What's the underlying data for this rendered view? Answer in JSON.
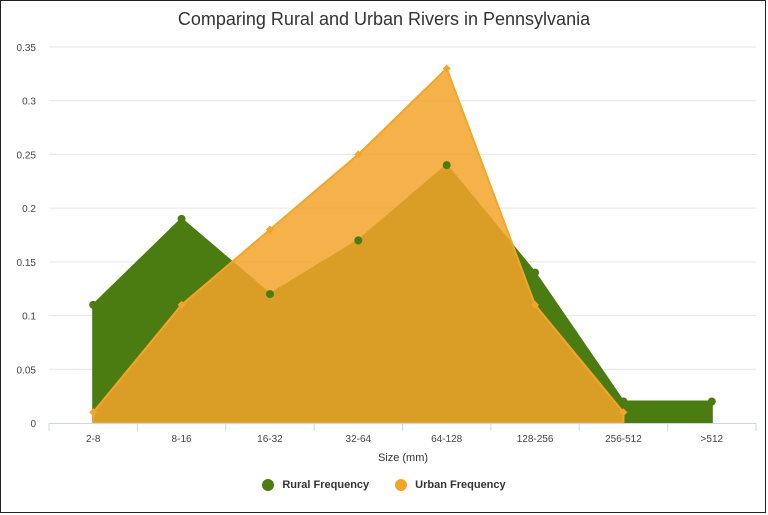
{
  "chart_data": {
    "type": "area",
    "title": "Comparing Rural and Urban Rivers in Pennsylvania",
    "xlabel": "Size (mm)",
    "ylabel": "",
    "categories": [
      "2-8",
      "8-16",
      "16-32",
      "32-64",
      "64-128",
      "128-256",
      "256-512",
      ">512"
    ],
    "ylim": [
      0,
      0.35
    ],
    "yticks": [
      "0",
      "0.05",
      "0.1",
      "0.15",
      "0.2",
      "0.25",
      "0.3",
      "0.35"
    ],
    "grid": true,
    "legend_position": "bottom-center",
    "series": [
      {
        "name": "Rural Frequency",
        "color": "#4a7c12",
        "values": [
          0.11,
          0.19,
          0.12,
          0.17,
          0.24,
          0.14,
          0.02,
          0.02
        ]
      },
      {
        "name": "Urban Frequency",
        "color": "#f3a52a",
        "values": [
          0.01,
          0.11,
          0.18,
          0.25,
          0.33,
          0.11,
          0.01,
          null
        ]
      }
    ]
  }
}
